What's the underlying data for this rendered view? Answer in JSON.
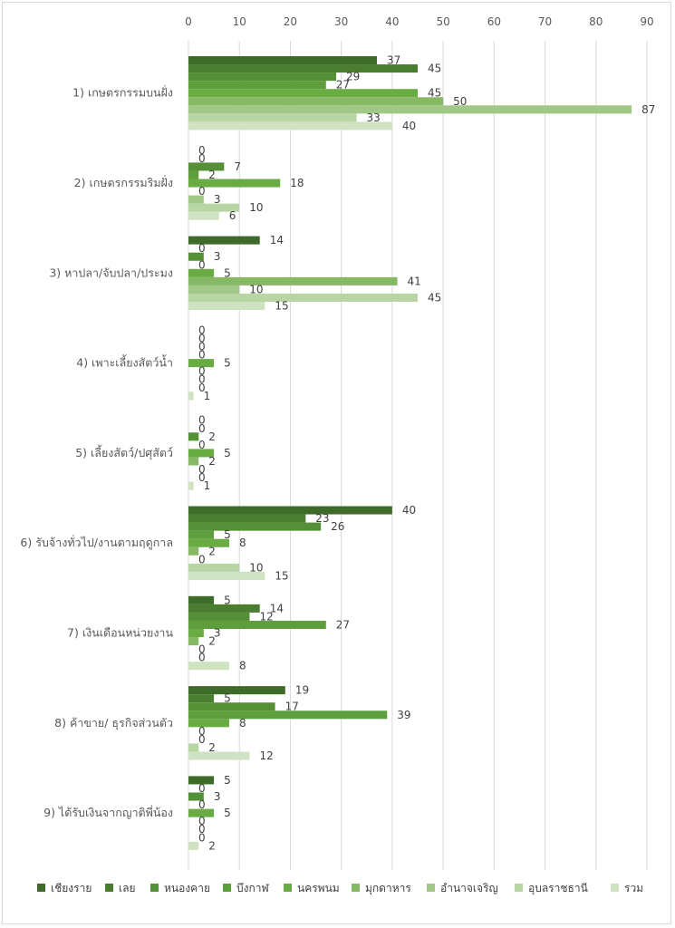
{
  "chart_data": {
    "type": "bar",
    "orientation": "horizontal",
    "xlim": [
      0,
      90
    ],
    "xticks": [
      "0",
      "10",
      "20",
      "30",
      "40",
      "50",
      "60",
      "70",
      "80",
      "90"
    ],
    "grid": true,
    "legend_position": "bottom",
    "categories": [
      "1) เกษตรกรรมบนฝั่ง",
      "2) เกษตรกรรมริมฝั่ง",
      "3) หาปลา/จับปลา/ประมง",
      "4) เพาะเลี้ยงสัตว์น้ำ",
      "5) เลี้ยงสัตว์/ปศุสัตว์",
      "6) รับจ้างทั่วไป/งานตามฤดูกาล",
      "7) เงินเดือนหน่วยงาน",
      "8) ค้าขาย/ ธุรกิจส่วนตัว",
      "9) ได้รับเงินจากญาติพี่น้อง"
    ],
    "series": [
      {
        "name": "เชียงราย",
        "color": "#3f6b2a",
        "values": [
          37,
          0,
          14,
          0,
          0,
          40,
          5,
          19,
          5
        ]
      },
      {
        "name": "เลย",
        "color": "#4a7d30",
        "values": [
          45,
          0,
          0,
          0,
          0,
          23,
          14,
          5,
          0
        ]
      },
      {
        "name": "หนองคาย",
        "color": "#558f36",
        "values": [
          29,
          7,
          3,
          0,
          2,
          26,
          12,
          17,
          3
        ]
      },
      {
        "name": "บึงกาฬ",
        "color": "#5f9e3c",
        "values": [
          27,
          2,
          0,
          0,
          0,
          5,
          27,
          39,
          0
        ]
      },
      {
        "name": "นครพนม",
        "color": "#6aac44",
        "values": [
          45,
          18,
          5,
          5,
          5,
          8,
          3,
          8,
          5
        ]
      },
      {
        "name": "มุกดาหาร",
        "color": "#86b866",
        "values": [
          50,
          0,
          41,
          0,
          2,
          2,
          2,
          0,
          0
        ]
      },
      {
        "name": "อำนาจเจริญ",
        "color": "#a1c887",
        "values": [
          87,
          3,
          10,
          0,
          0,
          0,
          0,
          0,
          0
        ]
      },
      {
        "name": "อุบลราชธานี",
        "color": "#b7d6a4",
        "values": [
          33,
          10,
          45,
          0,
          0,
          10,
          0,
          2,
          0
        ]
      },
      {
        "name": "รวม",
        "color": "#cfe3c2",
        "values": [
          40,
          6,
          15,
          1,
          1,
          15,
          8,
          12,
          2
        ]
      }
    ]
  }
}
